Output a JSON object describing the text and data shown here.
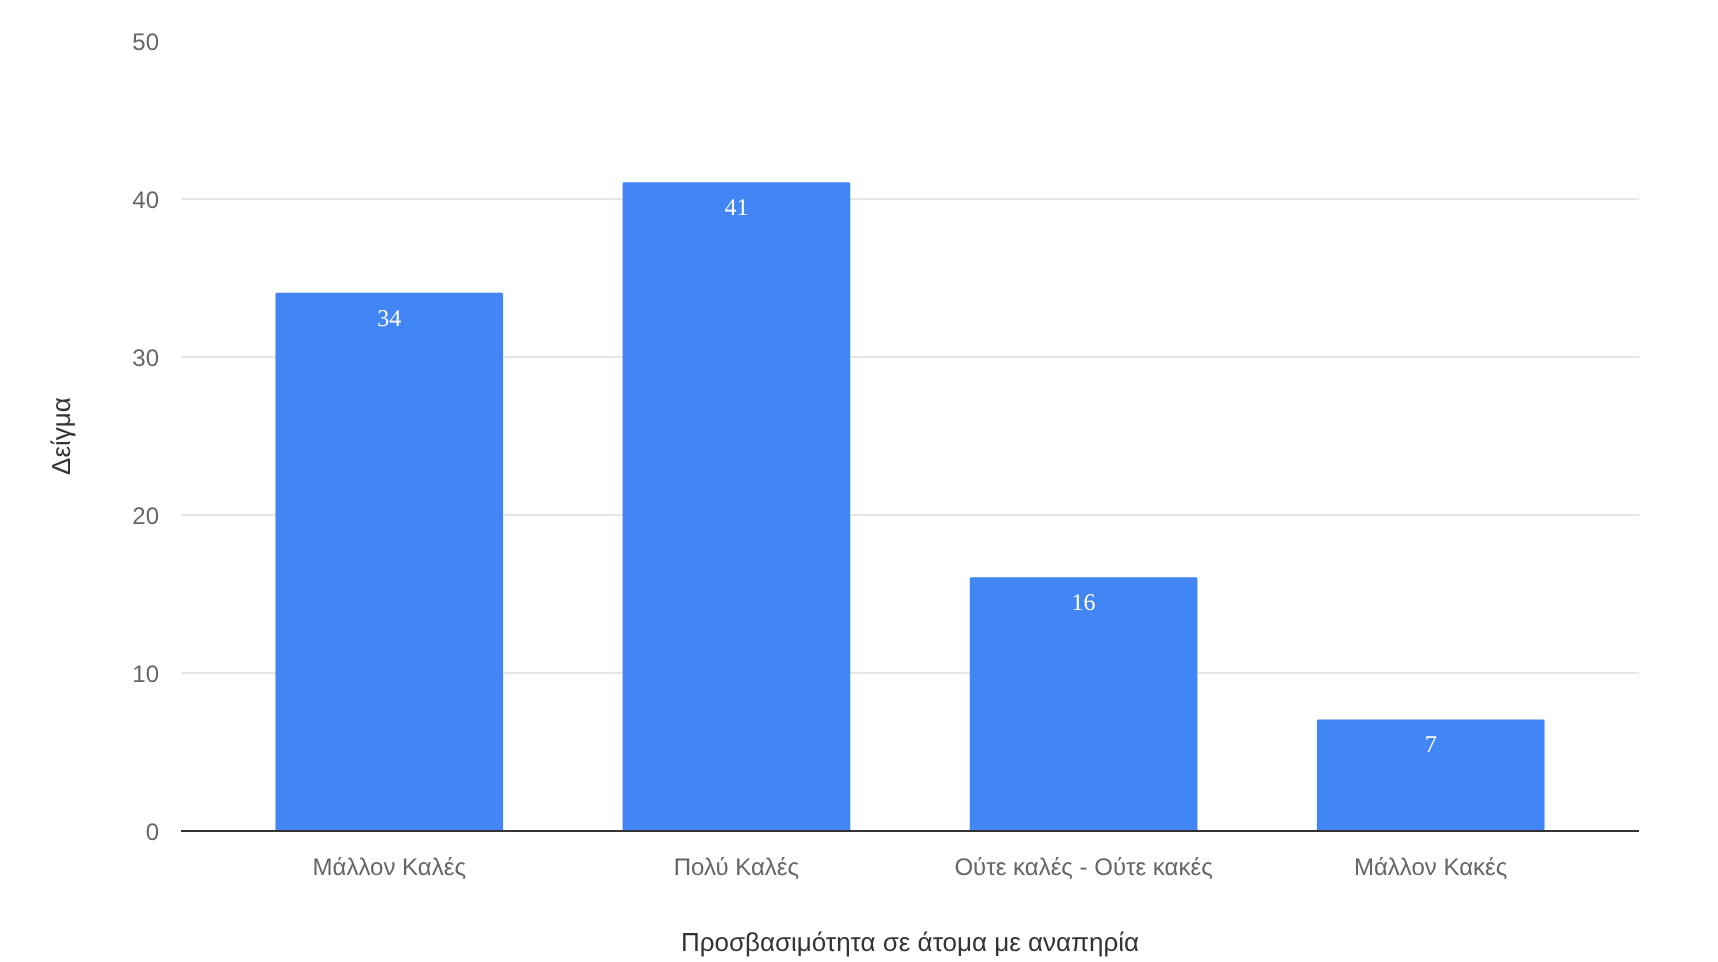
{
  "chart_data": {
    "type": "bar",
    "xlabel": "Προσβασιμότητα σε άτομα με αναπηρία",
    "ylabel": "Δείγμα",
    "categories": [
      "Μάλλον Καλές",
      "Πολύ Καλές",
      "Ούτε καλές - Ούτε κακές",
      "Μάλλον Κακές"
    ],
    "values": [
      34,
      41,
      16,
      7
    ],
    "color": "#4285f4",
    "ylim": [
      0,
      50
    ],
    "yticks": [
      0,
      10,
      20,
      30,
      40,
      50
    ],
    "grid": "y",
    "data_labels": true
  }
}
